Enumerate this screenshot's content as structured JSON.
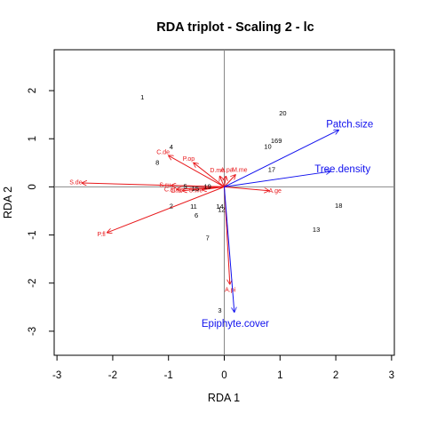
{
  "chart_data": {
    "type": "scatter",
    "title": "RDA triplot - Scaling 2 - lc",
    "xlabel": "RDA  1",
    "ylabel": "RDA  2",
    "xlim": [
      -3.05,
      3.05
    ],
    "ylim": [
      -3.5,
      2.85
    ],
    "xticks": [
      -3,
      -2,
      -1,
      0,
      1,
      2,
      3
    ],
    "yticks": [
      -3,
      -2,
      -1,
      0,
      1,
      2
    ],
    "grid": false,
    "reference_lines": [
      {
        "axis": "x",
        "value": 0
      },
      {
        "axis": "y",
        "value": 0
      }
    ],
    "colors": {
      "species": "#e8191c",
      "environment": "#1010ee",
      "sites": "#000000"
    },
    "sites": [
      {
        "label": "1",
        "x": -1.47,
        "y": 1.85
      },
      {
        "label": "2",
        "x": -0.95,
        "y": -0.41
      },
      {
        "label": "3",
        "x": -0.08,
        "y": -2.58
      },
      {
        "label": "4",
        "x": -0.95,
        "y": 0.82
      },
      {
        "label": "5",
        "x": -0.7,
        "y": 0.0
      },
      {
        "label": "6",
        "x": -0.5,
        "y": -0.6
      },
      {
        "label": "7",
        "x": -0.3,
        "y": -1.07
      },
      {
        "label": "8",
        "x": -1.2,
        "y": 0.5
      },
      {
        "label": "9",
        "x": 1.0,
        "y": 0.95
      },
      {
        "label": "10",
        "x": 0.78,
        "y": 0.83
      },
      {
        "label": "11",
        "x": -0.55,
        "y": -0.42
      },
      {
        "label": "12",
        "x": -0.05,
        "y": -0.48
      },
      {
        "label": "13",
        "x": 1.65,
        "y": -0.9
      },
      {
        "label": "14",
        "x": -0.08,
        "y": -0.42
      },
      {
        "label": "15",
        "x": -0.52,
        "y": -0.05
      },
      {
        "label": "16",
        "x": 0.9,
        "y": 0.95
      },
      {
        "label": "17",
        "x": 0.85,
        "y": 0.35
      },
      {
        "label": "18",
        "x": 2.05,
        "y": -0.4
      },
      {
        "label": "19",
        "x": -0.3,
        "y": 0.0
      },
      {
        "label": "20",
        "x": 1.05,
        "y": 1.52
      }
    ],
    "species_arrows": [
      {
        "label": "S.de",
        "x": -2.55,
        "y": 0.08
      },
      {
        "label": "P.fl",
        "x": -2.1,
        "y": -0.95
      },
      {
        "label": "C.de",
        "x": -1.0,
        "y": 0.65
      },
      {
        "label": "P.op",
        "x": -0.55,
        "y": 0.5
      },
      {
        "label": "S.ru",
        "x": -0.95,
        "y": 0.03
      },
      {
        "label": "C.sp",
        "x": -0.85,
        "y": -0.05
      },
      {
        "label": "C.fa",
        "x": -0.75,
        "y": -0.08
      },
      {
        "label": "S.we",
        "x": -0.4,
        "y": -0.06
      },
      {
        "label": "D.ma",
        "x": -0.08,
        "y": 0.22
      },
      {
        "label": "M.me",
        "x": 0.2,
        "y": 0.25
      },
      {
        "label": "A.pa",
        "x": 0.03,
        "y": 0.22
      },
      {
        "label": "A.ge",
        "x": 0.8,
        "y": -0.08
      },
      {
        "label": "A.pi",
        "x": 0.1,
        "y": -2.02
      }
    ],
    "environment_arrows": [
      {
        "label": "Patch.size",
        "x": 2.05,
        "y": 1.18
      },
      {
        "label": "Tree.density",
        "x": 1.9,
        "y": 0.32
      },
      {
        "label": "Epiphyte.cover",
        "x": 0.18,
        "y": -2.6
      }
    ]
  }
}
